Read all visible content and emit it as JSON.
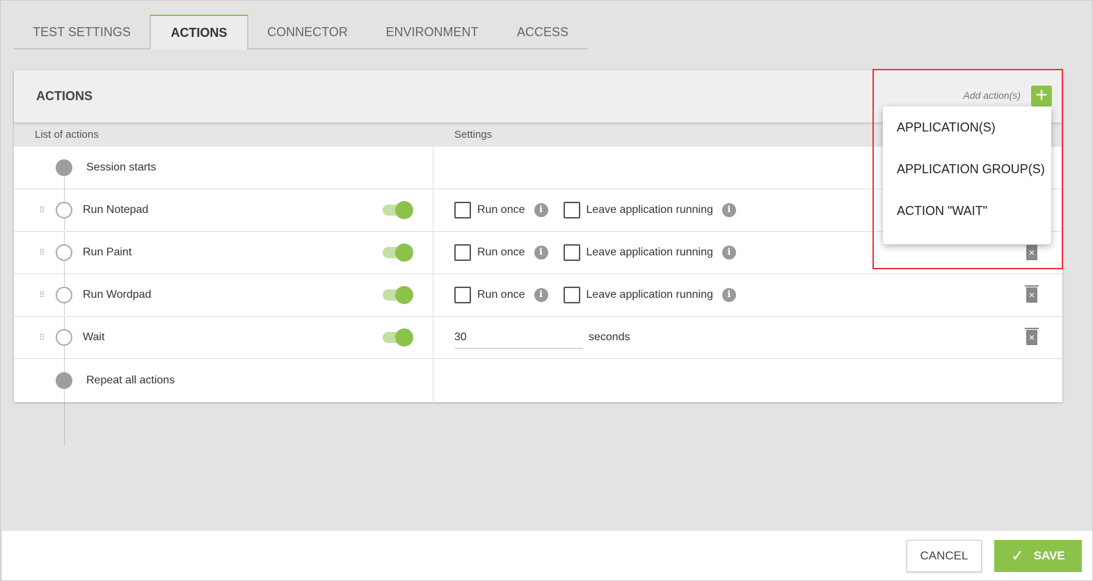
{
  "tabs": [
    {
      "label": "TEST SETTINGS"
    },
    {
      "label": "ACTIONS"
    },
    {
      "label": "CONNECTOR"
    },
    {
      "label": "ENVIRONMENT"
    },
    {
      "label": "ACCESS"
    }
  ],
  "panel": {
    "title": "ACTIONS",
    "add_label": "Add action(s)",
    "add_icon": "+",
    "col_list": "List of actions",
    "col_settings": "Settings"
  },
  "rows": [
    {
      "label": "Session starts"
    },
    {
      "label": "Run Notepad",
      "enabled": true,
      "run_once": "Run once",
      "leave": "Leave application running"
    },
    {
      "label": "Run Paint",
      "enabled": true,
      "run_once": "Run once",
      "leave": "Leave application running"
    },
    {
      "label": "Run Wordpad",
      "enabled": true,
      "run_once": "Run once",
      "leave": "Leave application running"
    },
    {
      "label": "Wait",
      "enabled": true,
      "value": "30",
      "unit": "seconds"
    },
    {
      "label": "Repeat all actions"
    }
  ],
  "menu": [
    {
      "label": "APPLICATION(S)"
    },
    {
      "label": "APPLICATION GROUP(S)"
    },
    {
      "label": "ACTION \"WAIT\""
    }
  ],
  "footer": {
    "cancel": "CANCEL",
    "save": "SAVE"
  },
  "colors": {
    "accent": "#8bc34a",
    "highlight": "#f0303c"
  }
}
